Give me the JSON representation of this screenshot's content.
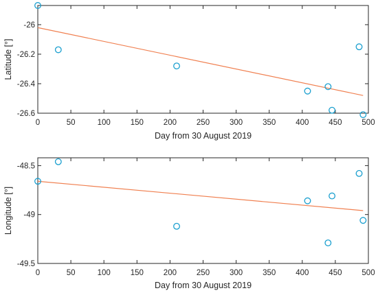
{
  "chart_data": [
    {
      "type": "scatter",
      "title": "",
      "xlabel": "Day from 30 August 2019",
      "ylabel": "Latitude [°]",
      "xlim": [
        0,
        500
      ],
      "ylim": [
        -26.6,
        -25.87
      ],
      "xticks": [
        0,
        50,
        100,
        150,
        200,
        250,
        300,
        350,
        400,
        450,
        500
      ],
      "xtick_labels": [
        "0",
        "50",
        "100",
        "150",
        "200",
        "250",
        "300",
        "350",
        "400",
        "450",
        "500"
      ],
      "yticks": [
        -26,
        -26.2,
        -26.4,
        -26.6
      ],
      "ytick_labels": [
        "-26",
        "-26.2",
        "-26.4",
        "-26.6"
      ],
      "grid": false,
      "series": [
        {
          "values": [
            {
              "x": 0,
              "y": -25.87
            },
            {
              "x": 31,
              "y": -26.17
            },
            {
              "x": 210,
              "y": -26.28
            },
            {
              "x": 408,
              "y": -26.45
            },
            {
              "x": 439,
              "y": -26.42
            },
            {
              "x": 445,
              "y": -26.58
            },
            {
              "x": 486,
              "y": -26.15
            },
            {
              "x": 492,
              "y": -26.61
            }
          ]
        }
      ],
      "fit_line": {
        "x": [
          0,
          492
        ],
        "y": [
          -26.02,
          -26.48
        ]
      },
      "marker_color": "#1a9fcf",
      "line_color": "#f07f4f"
    },
    {
      "type": "scatter",
      "title": "",
      "xlabel": "Day from 30 August 2019",
      "ylabel": "Longitude [°]",
      "xlim": [
        0,
        500
      ],
      "ylim": [
        -49.5,
        -48.42
      ],
      "xticks": [
        0,
        50,
        100,
        150,
        200,
        250,
        300,
        350,
        400,
        450,
        500
      ],
      "xtick_labels": [
        "0",
        "50",
        "100",
        "150",
        "200",
        "250",
        "300",
        "350",
        "400",
        "450",
        "500"
      ],
      "yticks": [
        -48.5,
        -49,
        -49.5
      ],
      "ytick_labels": [
        "-48.5",
        "-49",
        "-49.5"
      ],
      "grid": false,
      "series": [
        {
          "values": [
            {
              "x": 0,
              "y": -48.66
            },
            {
              "x": 31,
              "y": -48.46
            },
            {
              "x": 210,
              "y": -49.12
            },
            {
              "x": 408,
              "y": -48.86
            },
            {
              "x": 439,
              "y": -49.29
            },
            {
              "x": 445,
              "y": -48.81
            },
            {
              "x": 486,
              "y": -48.58
            },
            {
              "x": 492,
              "y": -49.06
            }
          ]
        }
      ],
      "fit_line": {
        "x": [
          0,
          492
        ],
        "y": [
          -48.66,
          -48.96
        ]
      },
      "marker_color": "#1a9fcf",
      "line_color": "#f07f4f"
    }
  ]
}
